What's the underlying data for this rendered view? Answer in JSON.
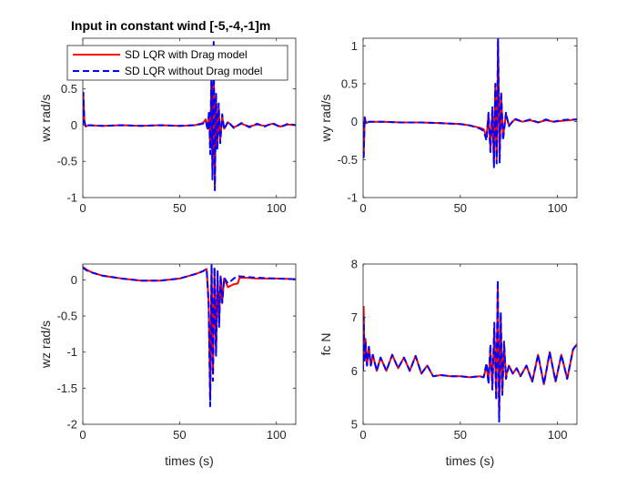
{
  "figure": {
    "title": "Input in constant wind [-5,-4,-1]m",
    "colors": {
      "series1": "#ff0000",
      "series2": "#0000ff",
      "axis": "#262626",
      "grid": "none"
    }
  },
  "legend": {
    "placement": "top-left of first subplot",
    "entries": [
      "SD LQR with Drag model",
      "SD LQR without Drag model"
    ]
  },
  "chart_data": [
    {
      "type": "line",
      "title": "Input in constant wind [-5,-4,-1]m",
      "ylabel": "wx rad/s",
      "xlabel": "",
      "xlim": [
        0,
        110
      ],
      "ylim": [
        -1,
        1.2
      ],
      "xticks": [
        "0",
        "50",
        "100"
      ],
      "yticks": [
        "-1",
        "-0.5",
        "0",
        "0.5"
      ],
      "ytick_values": [
        -1,
        -0.5,
        0,
        0.5
      ],
      "grid": false,
      "series": [
        {
          "name": "SD LQR with Drag model",
          "x": [
            0,
            0.3,
            0.8,
            1.5,
            3,
            10,
            20,
            30,
            40,
            50,
            58,
            62,
            63.5,
            64.5,
            65.2,
            65.8,
            66.4,
            67,
            67.6,
            68.2,
            68.8,
            69.5,
            70.2,
            71,
            72,
            73,
            75,
            78,
            82,
            86,
            90,
            94,
            98,
            102,
            106,
            110
          ],
          "y": [
            0,
            0.4,
            0.05,
            -0.02,
            0.0,
            -0.01,
            0.0,
            -0.01,
            0.0,
            -0.01,
            0.0,
            0.03,
            0.08,
            -0.05,
            0.15,
            -0.3,
            0.55,
            -0.7,
            0.9,
            -0.85,
            0.4,
            -0.3,
            0.25,
            -0.2,
            0.12,
            -0.05,
            0.04,
            -0.03,
            0.02,
            -0.02,
            0.01,
            -0.01,
            0.02,
            -0.02,
            0.01,
            0.0
          ]
        },
        {
          "name": "SD LQR without Drag model",
          "x": [
            0,
            0.3,
            0.8,
            1.5,
            3,
            10,
            20,
            30,
            40,
            50,
            58,
            62,
            63.5,
            64.5,
            65.2,
            65.8,
            66.4,
            67,
            67.6,
            68.2,
            68.8,
            69.5,
            70.2,
            71,
            72,
            73,
            75,
            78,
            82,
            86,
            90,
            94,
            98,
            102,
            106,
            110
          ],
          "y": [
            0,
            0.45,
            0.06,
            -0.03,
            0.0,
            -0.01,
            0.0,
            -0.01,
            0.0,
            -0.01,
            0.0,
            0.02,
            0.06,
            -0.07,
            0.2,
            -0.4,
            0.7,
            -0.75,
            1.15,
            -0.9,
            0.45,
            -0.35,
            0.3,
            -0.25,
            0.15,
            -0.06,
            0.05,
            -0.04,
            0.03,
            -0.03,
            0.02,
            -0.02,
            0.03,
            -0.03,
            0.02,
            0.0
          ]
        }
      ]
    },
    {
      "type": "line",
      "title": "",
      "ylabel": "wy rad/s",
      "xlabel": "",
      "xlim": [
        0,
        110
      ],
      "ylim": [
        -1,
        1.1
      ],
      "xticks": [
        "0",
        "50",
        "100"
      ],
      "yticks": [
        "-1",
        "-0.5",
        "0",
        "0.5",
        "1"
      ],
      "ytick_values": [
        -1,
        -0.5,
        0,
        0.5,
        1
      ],
      "grid": false,
      "series": [
        {
          "name": "SD LQR with Drag model",
          "x": [
            0,
            0.3,
            0.8,
            1.5,
            3,
            10,
            20,
            30,
            40,
            50,
            55,
            60,
            62,
            63.5,
            64.5,
            65.5,
            66.5,
            67.3,
            68,
            68.7,
            69.4,
            70.2,
            71,
            72,
            73.5,
            75,
            78,
            82,
            86,
            90,
            94,
            98,
            102,
            106,
            110
          ],
          "y": [
            0,
            -0.45,
            0.05,
            -0.02,
            0.0,
            0.0,
            -0.01,
            -0.01,
            -0.02,
            -0.03,
            -0.05,
            -0.08,
            -0.1,
            -0.2,
            0.1,
            -0.35,
            0.15,
            -0.55,
            0.45,
            -0.5,
            1.05,
            -0.5,
            0.35,
            -0.2,
            0.1,
            -0.05,
            0.03,
            0.0,
            0.02,
            -0.01,
            0.02,
            0.0,
            0.01,
            0.02,
            0.03
          ]
        },
        {
          "name": "SD LQR without Drag model",
          "x": [
            0,
            0.3,
            0.8,
            1.5,
            3,
            10,
            20,
            30,
            40,
            50,
            55,
            60,
            62,
            63.5,
            64.5,
            65.5,
            66.5,
            67.3,
            68,
            68.7,
            69.4,
            70.2,
            71,
            72,
            73.5,
            75,
            78,
            82,
            86,
            90,
            94,
            98,
            102,
            106,
            110
          ],
          "y": [
            0,
            -0.5,
            0.06,
            -0.03,
            0.0,
            0.0,
            -0.01,
            -0.01,
            -0.02,
            -0.03,
            -0.05,
            -0.09,
            -0.12,
            -0.25,
            0.12,
            -0.4,
            0.2,
            -0.6,
            0.5,
            -0.55,
            1.12,
            -0.55,
            0.4,
            -0.25,
            0.12,
            -0.06,
            0.04,
            0.0,
            0.03,
            -0.01,
            0.03,
            0.0,
            0.02,
            0.03,
            0.03
          ]
        }
      ]
    },
    {
      "type": "line",
      "title": "",
      "ylabel": "wz rad/s",
      "xlabel": "times (s)",
      "xlim": [
        0,
        110
      ],
      "ylim": [
        -2,
        0.22
      ],
      "xticks": [
        "0",
        "50",
        "100"
      ],
      "yticks": [
        "-2",
        "-1.5",
        "-1",
        "-0.5",
        "0"
      ],
      "ytick_values": [
        -2,
        -1.5,
        -1,
        -0.5,
        0
      ],
      "grid": false,
      "series": [
        {
          "name": "SD LQR with Drag model",
          "x": [
            0,
            2,
            5,
            10,
            20,
            30,
            40,
            50,
            58,
            62,
            64,
            65,
            65.8,
            66.5,
            67.2,
            68,
            68.8,
            69.6,
            70.4,
            71.2,
            72,
            73,
            75,
            78,
            80,
            81,
            85,
            90,
            100,
            110
          ],
          "y": [
            0.18,
            0.14,
            0.1,
            0.06,
            0.02,
            -0.01,
            -0.01,
            0.02,
            0.08,
            0.12,
            0.15,
            -0.3,
            -1.65,
            0.2,
            -1.3,
            0.15,
            -1.0,
            0.1,
            -0.6,
            0.05,
            -0.3,
            0.02,
            -0.1,
            -0.06,
            -0.05,
            0.03,
            0.03,
            0.02,
            0.02,
            0.01
          ]
        },
        {
          "name": "SD LQR without Drag model",
          "x": [
            0,
            2,
            5,
            10,
            20,
            30,
            40,
            50,
            58,
            62,
            64,
            65,
            65.8,
            66.5,
            67.2,
            68,
            68.8,
            69.6,
            70.4,
            71.2,
            72,
            73,
            75,
            78,
            80,
            81,
            85,
            90,
            100,
            110
          ],
          "y": [
            0.17,
            0.13,
            0.1,
            0.06,
            0.02,
            -0.01,
            -0.01,
            0.02,
            0.08,
            0.12,
            0.15,
            -0.35,
            -1.75,
            0.22,
            -1.4,
            0.18,
            -1.05,
            0.12,
            -0.65,
            0.06,
            -0.32,
            0.03,
            -0.05,
            0.02,
            0.06,
            0.05,
            0.04,
            0.03,
            0.02,
            0.01
          ]
        }
      ]
    },
    {
      "type": "line",
      "title": "",
      "ylabel": "fc N",
      "xlabel": "times (s)",
      "xlim": [
        0,
        110
      ],
      "ylim": [
        5,
        8
      ],
      "xticks": [
        "0",
        "50",
        "100"
      ],
      "yticks": [
        "5",
        "6",
        "7",
        "8"
      ],
      "ytick_values": [
        5,
        6,
        7,
        8
      ],
      "grid": false,
      "series": [
        {
          "name": "SD LQR with Drag model",
          "x": [
            0,
            0.3,
            0.7,
            1.2,
            2,
            3,
            4,
            5,
            7,
            9,
            12,
            15,
            18,
            21,
            24,
            27,
            30,
            33,
            36,
            40,
            45,
            50,
            55,
            60,
            62,
            63.5,
            64.5,
            65.5,
            66.5,
            67.5,
            68.5,
            69.3,
            70,
            70.8,
            71.6,
            72.5,
            73.5,
            75,
            77,
            79,
            81,
            84,
            87,
            90,
            93,
            96,
            99,
            102,
            105,
            108,
            110
          ],
          "y": [
            6.0,
            7.2,
            6.2,
            6.6,
            6.1,
            6.45,
            6.1,
            6.3,
            6.0,
            6.25,
            6.0,
            6.3,
            6.05,
            6.25,
            6.0,
            6.28,
            5.95,
            6.1,
            5.9,
            5.92,
            5.9,
            5.9,
            5.88,
            5.9,
            5.88,
            6.1,
            5.8,
            6.4,
            5.7,
            6.8,
            5.5,
            7.6,
            5.2,
            7.0,
            5.6,
            6.5,
            5.9,
            6.1,
            5.95,
            6.05,
            5.9,
            6.1,
            5.8,
            6.3,
            5.75,
            6.35,
            5.8,
            6.3,
            5.85,
            6.4,
            6.5
          ]
        },
        {
          "name": "SD LQR without Drag model",
          "x": [
            0,
            0.3,
            0.7,
            1.2,
            2,
            3,
            4,
            5,
            7,
            9,
            12,
            15,
            18,
            21,
            24,
            27,
            30,
            33,
            36,
            40,
            45,
            50,
            55,
            60,
            62,
            63.5,
            64.5,
            65.5,
            66.5,
            67.5,
            68.5,
            69.3,
            70,
            70.8,
            71.6,
            72.5,
            73.5,
            75,
            77,
            79,
            81,
            84,
            87,
            90,
            93,
            96,
            99,
            102,
            105,
            108,
            110
          ],
          "y": [
            6.0,
            7.0,
            6.15,
            6.55,
            6.1,
            6.45,
            6.1,
            6.3,
            6.0,
            6.25,
            6.0,
            6.3,
            6.05,
            6.25,
            6.0,
            6.28,
            5.95,
            6.1,
            5.9,
            5.92,
            5.9,
            5.9,
            5.88,
            5.9,
            5.88,
            6.15,
            5.75,
            6.5,
            5.65,
            6.9,
            5.45,
            7.7,
            5.05,
            7.1,
            5.55,
            6.55,
            5.85,
            6.1,
            5.95,
            6.05,
            5.9,
            6.1,
            5.8,
            6.3,
            5.75,
            6.35,
            5.8,
            6.3,
            5.85,
            6.4,
            6.5
          ]
        }
      ]
    }
  ]
}
